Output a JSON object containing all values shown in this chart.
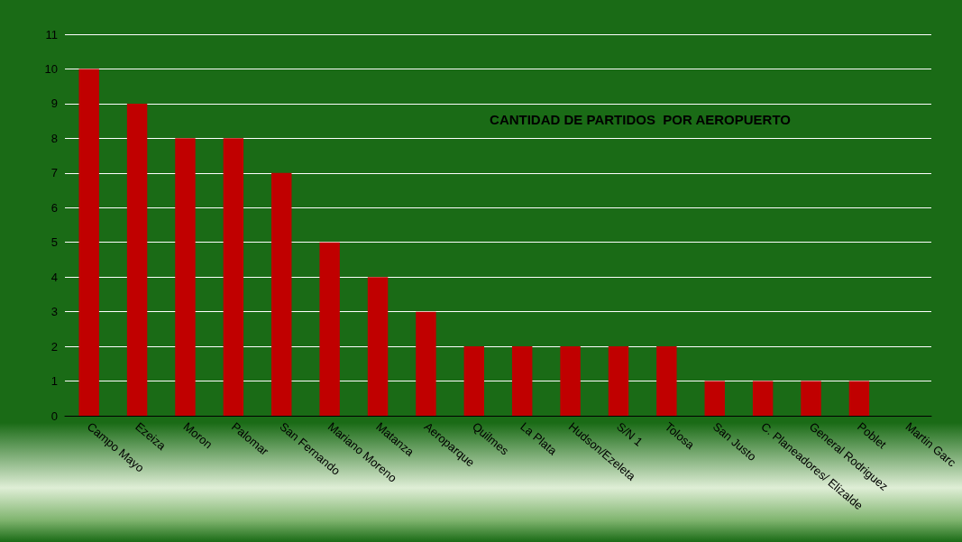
{
  "chart_data": {
    "type": "bar",
    "title": "CANTIDAD DE PARTIDOS  POR AEROPUERTO",
    "categories": [
      "Campo Mayo",
      "Ezeiza",
      "Moron",
      "Palomar",
      "San Fernando",
      "Mariano Moreno",
      "Matanza",
      "Aeroparque",
      "Quilmes",
      "La Plata",
      "Hudson/Ezeleta",
      "S/N 1",
      "Tolosa",
      "San Justo",
      "C. Planeadores/ Elizalde",
      "General Rodriguez",
      "Poblet",
      "Martin Garc"
    ],
    "values": [
      10,
      9,
      8,
      8,
      7,
      5,
      4,
      3,
      2,
      2,
      2,
      2,
      2,
      1,
      1,
      1,
      1,
      0
    ],
    "color": "#c00000",
    "ylim": [
      0,
      11
    ],
    "yticks": [
      0,
      1,
      2,
      3,
      4,
      5,
      6,
      7,
      8,
      9,
      10,
      11
    ],
    "grid": "y"
  }
}
